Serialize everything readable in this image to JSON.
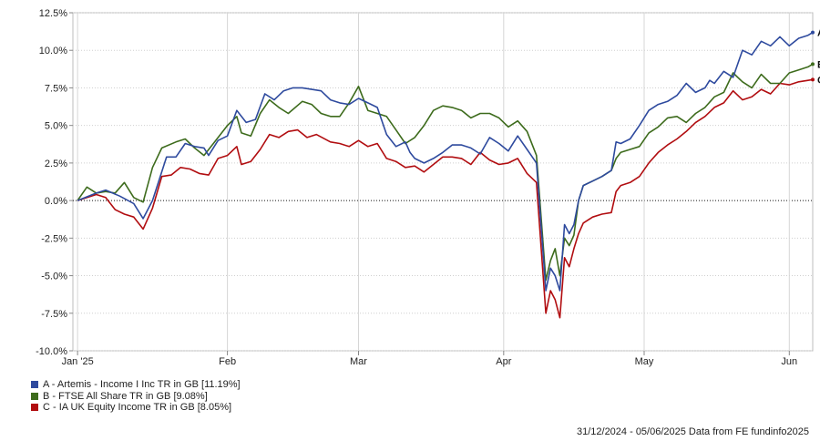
{
  "chart_data": {
    "type": "line",
    "title": "",
    "xlabel": "",
    "ylabel": "",
    "ylim": [
      -10,
      12.5
    ],
    "y_ticks": [
      "12.5%",
      "10.0%",
      "7.5%",
      "5.0%",
      "2.5%",
      "0.0%",
      "-2.5%",
      "-5.0%",
      "-7.5%",
      "-10.0%"
    ],
    "x_ticks": [
      {
        "label": "Jan '25",
        "day": 0
      },
      {
        "label": "Feb",
        "day": 32
      },
      {
        "label": "Mar",
        "day": 60
      },
      {
        "label": "Apr",
        "day": 91
      },
      {
        "label": "May",
        "day": 121
      },
      {
        "label": "Jun",
        "day": 152
      }
    ],
    "x_range_days": [
      -1,
      157
    ],
    "grid": true,
    "zero_line": "dotted",
    "legend_position": "bottom-left",
    "series": [
      {
        "key": "A",
        "name": "A - Artemis - Income I Inc TR in GB [11.19%]",
        "color": "#2e4a9e",
        "points": [
          [
            0,
            0
          ],
          [
            4,
            0.5
          ],
          [
            6,
            0.7
          ],
          [
            9,
            0.3
          ],
          [
            12,
            -0.2
          ],
          [
            14,
            -1.2
          ],
          [
            16,
            0
          ],
          [
            19,
            2.9
          ],
          [
            21,
            2.9
          ],
          [
            23,
            3.8
          ],
          [
            25,
            3.6
          ],
          [
            27,
            3.5
          ],
          [
            28,
            3
          ],
          [
            30,
            4
          ],
          [
            32,
            4.3
          ],
          [
            34,
            6
          ],
          [
            36,
            5.2
          ],
          [
            38,
            5.4
          ],
          [
            40,
            7.1
          ],
          [
            42,
            6.7
          ],
          [
            44,
            7.3
          ],
          [
            46,
            7.5
          ],
          [
            48,
            7.5
          ],
          [
            52,
            7.3
          ],
          [
            54,
            6.7
          ],
          [
            56,
            6.5
          ],
          [
            58,
            6.4
          ],
          [
            60,
            6.8
          ],
          [
            62,
            6.5
          ],
          [
            64,
            6.2
          ],
          [
            65,
            5.3
          ],
          [
            66,
            4.4
          ],
          [
            68,
            3.6
          ],
          [
            70,
            3.9
          ],
          [
            71,
            3.2
          ],
          [
            72,
            2.8
          ],
          [
            74,
            2.5
          ],
          [
            76,
            2.8
          ],
          [
            78,
            3.2
          ],
          [
            80,
            3.7
          ],
          [
            82,
            3.7
          ],
          [
            84,
            3.5
          ],
          [
            86,
            3.1
          ],
          [
            88,
            4.2
          ],
          [
            90,
            3.8
          ],
          [
            92,
            3.3
          ],
          [
            94,
            4.3
          ],
          [
            96,
            3.4
          ],
          [
            98,
            2.5
          ],
          [
            100,
            -6
          ],
          [
            101,
            -4.5
          ],
          [
            102,
            -5
          ],
          [
            103,
            -6
          ],
          [
            104,
            -1.6
          ],
          [
            105,
            -2.2
          ],
          [
            106,
            -1.6
          ],
          [
            107,
            0
          ],
          [
            108,
            1
          ],
          [
            110,
            1.3
          ],
          [
            112,
            1.6
          ],
          [
            114,
            2
          ],
          [
            115,
            3.9
          ],
          [
            116,
            3.8
          ],
          [
            118,
            4.1
          ],
          [
            120,
            5
          ],
          [
            122,
            6
          ],
          [
            124,
            6.4
          ],
          [
            126,
            6.6
          ],
          [
            128,
            7
          ],
          [
            130,
            7.8
          ],
          [
            132,
            7.2
          ],
          [
            134,
            7.5
          ],
          [
            135,
            8
          ],
          [
            136,
            7.8
          ],
          [
            138,
            8.6
          ],
          [
            140,
            8.2
          ],
          [
            142,
            10
          ],
          [
            144,
            9.7
          ],
          [
            146,
            10.6
          ],
          [
            148,
            10.3
          ],
          [
            150,
            10.9
          ],
          [
            152,
            10.3
          ],
          [
            154,
            10.8
          ],
          [
            156,
            11.0
          ],
          [
            157,
            11.19
          ]
        ]
      },
      {
        "key": "B",
        "name": "B - FTSE All Share TR in GB [9.08%]",
        "color": "#3d6b1c",
        "points": [
          [
            0,
            0
          ],
          [
            2,
            0.9
          ],
          [
            4,
            0.5
          ],
          [
            6,
            0.6
          ],
          [
            8,
            0.5
          ],
          [
            10,
            1.2
          ],
          [
            12,
            0.2
          ],
          [
            14,
            -0.1
          ],
          [
            16,
            2.2
          ],
          [
            18,
            3.5
          ],
          [
            21,
            3.9
          ],
          [
            23,
            4.1
          ],
          [
            25,
            3.5
          ],
          [
            27,
            3
          ],
          [
            29,
            3.8
          ],
          [
            32,
            5
          ],
          [
            34,
            5.6
          ],
          [
            35,
            4.5
          ],
          [
            37,
            4.3
          ],
          [
            39,
            5.8
          ],
          [
            41,
            6.7
          ],
          [
            43,
            6.2
          ],
          [
            45,
            5.8
          ],
          [
            48,
            6.6
          ],
          [
            50,
            6.4
          ],
          [
            52,
            5.8
          ],
          [
            54,
            5.6
          ],
          [
            56,
            5.6
          ],
          [
            58,
            6.5
          ],
          [
            60,
            7.6
          ],
          [
            62,
            6
          ],
          [
            64,
            5.8
          ],
          [
            66,
            5.6
          ],
          [
            68,
            4.7
          ],
          [
            70,
            3.8
          ],
          [
            72,
            4.2
          ],
          [
            74,
            5
          ],
          [
            76,
            6
          ],
          [
            78,
            6.3
          ],
          [
            80,
            6.2
          ],
          [
            82,
            6
          ],
          [
            84,
            5.5
          ],
          [
            86,
            5.8
          ],
          [
            88,
            5.8
          ],
          [
            90,
            5.5
          ],
          [
            92,
            4.9
          ],
          [
            94,
            5.3
          ],
          [
            96,
            4.6
          ],
          [
            98,
            3
          ],
          [
            100,
            -5.3
          ],
          [
            101,
            -4
          ],
          [
            102,
            -3.2
          ],
          [
            103,
            -5
          ],
          [
            104,
            -2.5
          ],
          [
            105,
            -3
          ],
          [
            106,
            -2.3
          ],
          [
            107,
            0
          ],
          [
            108,
            1
          ],
          [
            110,
            1.3
          ],
          [
            112,
            1.6
          ],
          [
            114,
            2
          ],
          [
            115,
            2.8
          ],
          [
            116,
            3.2
          ],
          [
            118,
            3.4
          ],
          [
            120,
            3.6
          ],
          [
            122,
            4.5
          ],
          [
            124,
            4.9
          ],
          [
            126,
            5.5
          ],
          [
            128,
            5.6
          ],
          [
            130,
            5.2
          ],
          [
            132,
            5.8
          ],
          [
            134,
            6.2
          ],
          [
            136,
            6.9
          ],
          [
            138,
            7.2
          ],
          [
            140,
            8.5
          ],
          [
            142,
            7.9
          ],
          [
            144,
            7.5
          ],
          [
            146,
            8.4
          ],
          [
            148,
            7.8
          ],
          [
            150,
            7.8
          ],
          [
            152,
            8.5
          ],
          [
            154,
            8.7
          ],
          [
            156,
            8.9
          ],
          [
            157,
            9.08
          ]
        ]
      },
      {
        "key": "C",
        "name": "C - IA UK Equity Income TR in GB [8.05%]",
        "color": "#b10d10",
        "points": [
          [
            0,
            0
          ],
          [
            4,
            0.4
          ],
          [
            6,
            0.2
          ],
          [
            8,
            -0.6
          ],
          [
            10,
            -0.9
          ],
          [
            12,
            -1.1
          ],
          [
            14,
            -1.9
          ],
          [
            16,
            -0.5
          ],
          [
            18,
            1.6
          ],
          [
            20,
            1.7
          ],
          [
            22,
            2.2
          ],
          [
            24,
            2.1
          ],
          [
            26,
            1.8
          ],
          [
            28,
            1.7
          ],
          [
            30,
            2.8
          ],
          [
            32,
            3
          ],
          [
            34,
            3.6
          ],
          [
            35,
            2.4
          ],
          [
            37,
            2.6
          ],
          [
            39,
            3.4
          ],
          [
            41,
            4.4
          ],
          [
            43,
            4.2
          ],
          [
            45,
            4.6
          ],
          [
            47,
            4.7
          ],
          [
            49,
            4.2
          ],
          [
            51,
            4.4
          ],
          [
            54,
            3.9
          ],
          [
            56,
            3.8
          ],
          [
            58,
            3.6
          ],
          [
            60,
            4
          ],
          [
            62,
            3.6
          ],
          [
            64,
            3.8
          ],
          [
            66,
            2.8
          ],
          [
            68,
            2.6
          ],
          [
            70,
            2.2
          ],
          [
            72,
            2.3
          ],
          [
            74,
            1.9
          ],
          [
            76,
            2.4
          ],
          [
            78,
            2.9
          ],
          [
            80,
            2.9
          ],
          [
            82,
            2.8
          ],
          [
            84,
            2.4
          ],
          [
            86,
            3.2
          ],
          [
            88,
            2.7
          ],
          [
            90,
            2.4
          ],
          [
            92,
            2.5
          ],
          [
            94,
            2.8
          ],
          [
            96,
            1.8
          ],
          [
            98,
            1.2
          ],
          [
            100,
            -7.5
          ],
          [
            101,
            -6
          ],
          [
            102,
            -6.6
          ],
          [
            103,
            -7.8
          ],
          [
            104,
            -3.8
          ],
          [
            105,
            -4.4
          ],
          [
            106,
            -3.2
          ],
          [
            107,
            -2.2
          ],
          [
            108,
            -1.5
          ],
          [
            110,
            -1.1
          ],
          [
            112,
            -0.9
          ],
          [
            114,
            -0.8
          ],
          [
            115,
            0.6
          ],
          [
            116,
            1
          ],
          [
            118,
            1.2
          ],
          [
            120,
            1.6
          ],
          [
            122,
            2.5
          ],
          [
            124,
            3.2
          ],
          [
            126,
            3.7
          ],
          [
            128,
            4.1
          ],
          [
            130,
            4.6
          ],
          [
            132,
            5.2
          ],
          [
            134,
            5.6
          ],
          [
            136,
            6.2
          ],
          [
            138,
            6.5
          ],
          [
            140,
            7.3
          ],
          [
            142,
            6.7
          ],
          [
            144,
            6.9
          ],
          [
            146,
            7.4
          ],
          [
            148,
            7.1
          ],
          [
            150,
            7.8
          ],
          [
            152,
            7.7
          ],
          [
            154,
            7.9
          ],
          [
            156,
            8.0
          ],
          [
            157,
            8.05
          ]
        ]
      }
    ]
  },
  "footer": {
    "text": "31/12/2024 - 05/06/2025 Data from FE fundinfo2025"
  }
}
